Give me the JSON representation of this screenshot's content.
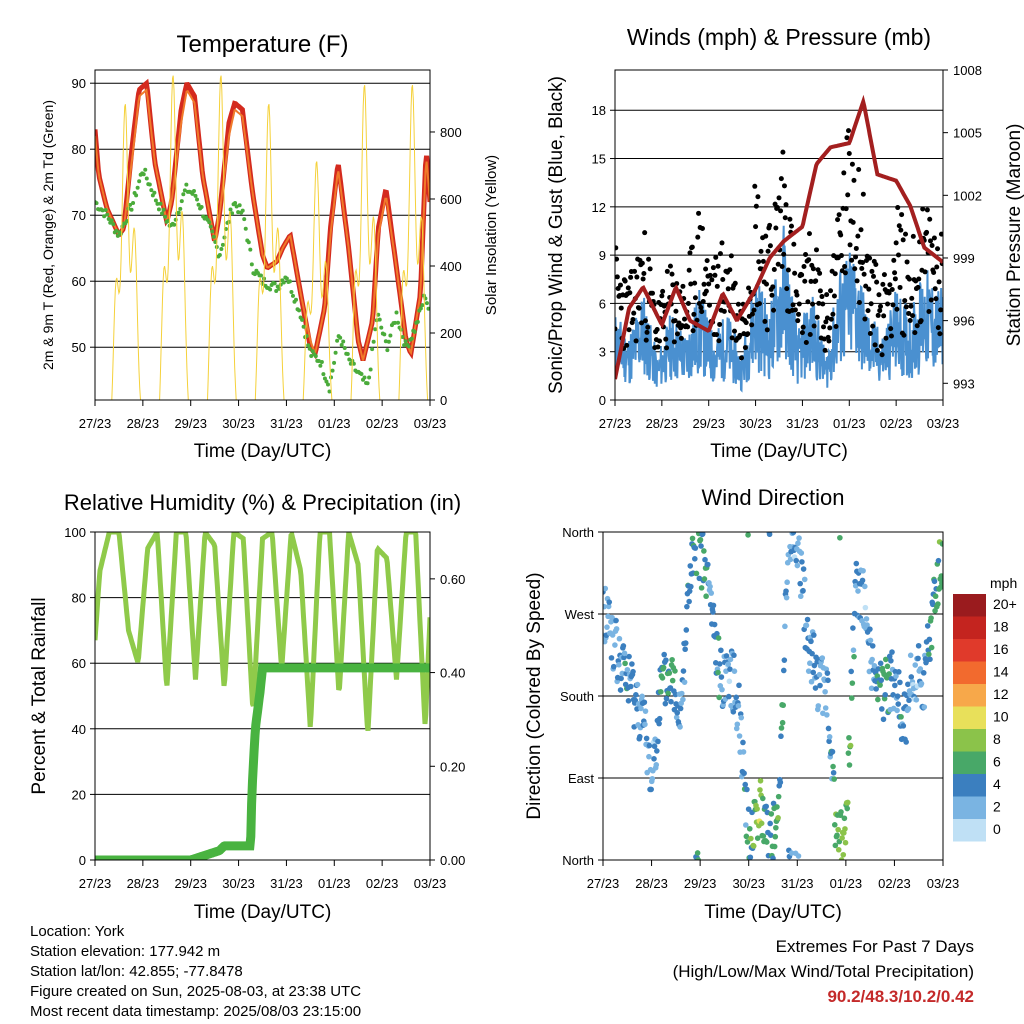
{
  "chart_data": [
    {
      "type": "line",
      "title": "Temperature (F)",
      "xlabel": "Time (Day/UTC)",
      "ylabel": "2m & 9m T (Red, Orange) & 2m Td (Green)",
      "ylabel_right": "Solar Insolation (Yellow)",
      "x_ticks": [
        "27/23",
        "28/23",
        "29/23",
        "30/23",
        "31/23",
        "01/23",
        "02/23",
        "03/23"
      ],
      "ylim": [
        42,
        92
      ],
      "y_ticks": [
        50,
        60,
        70,
        80,
        90
      ],
      "ylim_right": [
        0,
        985
      ],
      "y_ticks_right": [
        0,
        200,
        400,
        600,
        800
      ],
      "grid": true,
      "series": [
        {
          "name": "2m T",
          "color": "#d42a1e",
          "day": [
            0,
            0.08,
            0.25,
            0.5,
            0.6,
            0.8,
            0.92,
            1.08,
            1.25,
            1.5,
            1.6,
            1.8,
            1.92,
            2.08,
            2.25,
            2.5,
            2.6,
            2.8,
            2.92,
            3.08,
            3.3,
            3.5,
            3.6,
            3.8,
            3.92,
            4.08,
            4.3,
            4.5,
            4.6,
            4.8,
            4.92,
            5.08,
            5.3,
            5.5,
            5.6,
            5.8,
            5.92,
            6.08,
            6.3,
            6.5,
            6.6,
            6.8,
            6.92,
            7.0
          ],
          "values": [
            83,
            76,
            71,
            67,
            68,
            82,
            89,
            90,
            78,
            69,
            72,
            86,
            90,
            88,
            76,
            66,
            70,
            84,
            87,
            86,
            73,
            64,
            62,
            63,
            65,
            67,
            58,
            50,
            49,
            56,
            68,
            78,
            65,
            51,
            48,
            54,
            68,
            74,
            62,
            51,
            49,
            58,
            80,
            72
          ]
        },
        {
          "name": "9m T",
          "color": "#f07a2a",
          "day": [
            0,
            0.08,
            0.25,
            0.5,
            0.6,
            0.8,
            0.92,
            1.08,
            1.25,
            1.5,
            1.6,
            1.8,
            1.92,
            2.08,
            2.25,
            2.5,
            2.6,
            2.8,
            2.92,
            3.08,
            3.3,
            3.5,
            3.6,
            3.8,
            3.92,
            4.08,
            4.3,
            4.5,
            4.6,
            4.8,
            4.92,
            5.08,
            5.3,
            5.5,
            5.6,
            5.8,
            5.92,
            6.08,
            6.3,
            6.5,
            6.6,
            6.8,
            6.92,
            7.0
          ],
          "values": [
            82,
            76,
            71,
            67,
            68,
            80,
            88,
            89,
            78,
            69,
            72,
            84,
            89,
            87,
            76,
            66,
            70,
            82,
            86,
            85,
            73,
            64,
            62,
            63,
            65,
            67,
            58,
            51,
            49,
            56,
            67,
            77,
            65,
            51,
            48,
            54,
            67,
            73,
            62,
            51,
            49,
            58,
            79,
            72
          ]
        },
        {
          "name": "2m Td",
          "color": "#4aab3a",
          "day": [
            0,
            0.25,
            0.5,
            0.8,
            1.0,
            1.3,
            1.6,
            1.9,
            2.1,
            2.4,
            2.6,
            2.9,
            3.1,
            3.3,
            3.5,
            3.8,
            4.0,
            4.3,
            4.5,
            4.7,
            4.9,
            5.1,
            5.3,
            5.5,
            5.7,
            5.9,
            6.1,
            6.3,
            6.5,
            6.7,
            6.9,
            7.0
          ],
          "values": [
            72,
            70,
            67,
            72,
            77,
            72,
            68,
            74,
            73,
            68,
            64,
            72,
            70,
            62,
            60,
            59,
            61,
            55,
            49,
            48,
            44,
            52,
            48,
            46,
            44,
            55,
            50,
            55,
            50,
            53,
            58,
            55
          ]
        },
        {
          "name": "Solar Insolation",
          "color": "#f5d13a",
          "axis": "right",
          "day": [
            0.35,
            0.55,
            0.75,
            0.95,
            1.35,
            1.55,
            1.75,
            1.95,
            2.35,
            2.55,
            2.75,
            2.95,
            3.35,
            3.55,
            3.75,
            3.95,
            4.35,
            4.55,
            4.75,
            4.95,
            5.35,
            5.55,
            5.75,
            5.95,
            6.35,
            6.55,
            6.75,
            6.95
          ],
          "values": [
            0,
            700,
            850,
            0,
            0,
            800,
            900,
            0,
            0,
            820,
            880,
            0,
            0,
            750,
            800,
            0,
            0,
            600,
            650,
            0,
            0,
            950,
            700,
            0,
            0,
            800,
            850,
            0
          ]
        }
      ]
    },
    {
      "type": "scatter",
      "title": "Winds (mph) & Pressure (mb)",
      "xlabel": "Time (Day/UTC)",
      "ylabel": "Sonic/Prop Wind & Gust (Blue, Black)",
      "ylabel_right": "Station Pressure (Maroon)",
      "x_ticks": [
        "27/23",
        "28/23",
        "29/23",
        "30/23",
        "31/23",
        "01/23",
        "02/23",
        "03/23"
      ],
      "ylim": [
        0,
        20.5
      ],
      "y_ticks": [
        0,
        3,
        6,
        9,
        12,
        15,
        18
      ],
      "ylim_right": [
        992.2,
        1008.0
      ],
      "y_ticks_right": [
        993,
        996,
        999,
        1002,
        1005,
        1008
      ],
      "grid": true,
      "series": [
        {
          "name": "Wind",
          "color": "#4a90d0",
          "day": [
            0,
            0.3,
            0.6,
            0.9,
            1.2,
            1.5,
            1.8,
            2.1,
            2.4,
            2.7,
            3.0,
            3.3,
            3.6,
            3.9,
            4.2,
            4.5,
            4.8,
            5.1,
            5.4,
            5.7,
            6.0,
            6.3,
            6.6,
            6.9
          ],
          "values": [
            4,
            3,
            5,
            2,
            4,
            3,
            5,
            3,
            4,
            2,
            6,
            4,
            8,
            3,
            5,
            2,
            6,
            7,
            4,
            3,
            5,
            4,
            6,
            5
          ]
        },
        {
          "name": "Gust",
          "color": "#000000",
          "day": [
            0,
            0.3,
            0.6,
            0.9,
            1.2,
            1.5,
            1.8,
            2.1,
            2.4,
            2.7,
            3.0,
            3.3,
            3.6,
            3.9,
            4.2,
            4.5,
            4.8,
            5.1,
            5.4,
            5.7,
            6.0,
            6.3,
            6.6,
            6.9
          ],
          "values": [
            8,
            6,
            9,
            5,
            7,
            6,
            10,
            7,
            9,
            5,
            12,
            9,
            14,
            6,
            9,
            5,
            11,
            16,
            8,
            6,
            10,
            8,
            10,
            9
          ]
        },
        {
          "name": "Pressure",
          "color": "#a31f1f",
          "axis": "right",
          "day": [
            0,
            0.3,
            0.6,
            1.0,
            1.3,
            1.6,
            2.0,
            2.3,
            2.6,
            3.0,
            3.3,
            3.6,
            4.0,
            4.3,
            4.6,
            5.0,
            5.3,
            5.6,
            6.0,
            6.3,
            6.6,
            7.0
          ],
          "values": [
            993.2,
            996.6,
            997.6,
            995.8,
            997.6,
            996.0,
            995.5,
            997.3,
            996.0,
            997.5,
            999.0,
            999.8,
            1000.5,
            1003.5,
            1004.3,
            1004.5,
            1006.5,
            1003.0,
            1002.7,
            1001.5,
            999.5,
            998.8
          ]
        }
      ]
    },
    {
      "type": "line",
      "title": "Relative Humidity (%) & Precipitation (in)",
      "xlabel": "Time (Day/UTC)",
      "ylabel": "Percent & Total Rainfall",
      "x_ticks": [
        "27/23",
        "28/23",
        "29/23",
        "30/23",
        "31/23",
        "01/23",
        "02/23",
        "03/23"
      ],
      "ylim": [
        0,
        100
      ],
      "y_ticks": [
        0,
        20,
        40,
        60,
        80,
        100
      ],
      "ylim_right": [
        0,
        0.7
      ],
      "y_ticks_right": [
        "0.00",
        "0.20",
        "0.40",
        "0.60"
      ],
      "grid": true,
      "series": [
        {
          "name": "RH",
          "color": "#8fca4a",
          "day": [
            0,
            0.1,
            0.3,
            0.5,
            0.7,
            0.9,
            1.1,
            1.3,
            1.5,
            1.7,
            1.9,
            2.1,
            2.3,
            2.5,
            2.7,
            2.9,
            3.1,
            3.3,
            3.5,
            3.7,
            3.9,
            4.1,
            4.3,
            4.5,
            4.7,
            4.9,
            5.1,
            5.3,
            5.5,
            5.7,
            5.9,
            6.1,
            6.3,
            6.5,
            6.7,
            6.9,
            7.0
          ],
          "values": [
            67,
            88,
            100,
            100,
            70,
            60,
            95,
            100,
            52,
            100,
            100,
            55,
            100,
            96,
            52,
            100,
            98,
            45,
            98,
            100,
            58,
            100,
            88,
            40,
            100,
            100,
            50,
            100,
            90,
            38,
            95,
            92,
            55,
            100,
            100,
            40,
            74
          ]
        },
        {
          "name": "Precipitation",
          "color": "#49b340",
          "axis": "right",
          "day": [
            0,
            2.0,
            2.6,
            2.7,
            3.0,
            3.25,
            3.28,
            3.35,
            3.45,
            3.5,
            7.0
          ],
          "values": [
            0.0,
            0.0,
            0.02,
            0.03,
            0.03,
            0.03,
            0.15,
            0.28,
            0.36,
            0.41,
            0.41
          ]
        }
      ]
    },
    {
      "type": "scatter",
      "title": "Wind Direction",
      "xlabel": "Time (Day/UTC)",
      "ylabel": "Direction (Colored By Speed)",
      "x_ticks": [
        "27/23",
        "28/23",
        "29/23",
        "30/23",
        "31/23",
        "01/23",
        "02/23",
        "03/23"
      ],
      "ylim": [
        0,
        360
      ],
      "y_ticks": [
        "North",
        "East",
        "South",
        "West",
        "North"
      ],
      "y_tick_values": [
        0,
        90,
        180,
        270,
        360
      ],
      "grid": true,
      "colorbar": {
        "unit": "mph",
        "labels": [
          "20+",
          "18",
          "16",
          "14",
          "12",
          "10",
          "8",
          "6",
          "4",
          "2",
          "0"
        ],
        "colors": [
          "#9a1b1e",
          "#c4241f",
          "#e03a2b",
          "#f26a2e",
          "#f7a84a",
          "#e8e05a",
          "#8bc34a",
          "#48a868",
          "#3b7fbf",
          "#7ab4e2",
          "#bfe0f5"
        ]
      },
      "series": [
        {
          "name": "Direction",
          "day": [
            0.1,
            0.3,
            0.5,
            0.8,
            1.0,
            1.2,
            1.4,
            1.6,
            1.8,
            2.0,
            2.2,
            2.4,
            2.6,
            2.8,
            3.0,
            3.2,
            3.4,
            3.6,
            3.8,
            4.0,
            4.2,
            4.4,
            4.6,
            4.8,
            5.0,
            5.2,
            5.4,
            5.6,
            5.8,
            6.0,
            6.2,
            6.4,
            6.6,
            6.8,
            6.95
          ],
          "values": [
            270,
            220,
            200,
            160,
            90,
            190,
            200,
            170,
            320,
            340,
            290,
            200,
            210,
            170,
            20,
            60,
            30,
            30,
            340,
            350,
            250,
            200,
            190,
            30,
            20,
            300,
            280,
            180,
            190,
            200,
            150,
            210,
            190,
            280,
            320
          ],
          "speed": [
            2,
            3,
            4,
            3,
            2,
            4,
            5,
            3,
            4,
            6,
            3,
            4,
            2,
            3,
            5,
            8,
            4,
            6,
            3,
            2,
            4,
            3,
            2,
            6,
            8,
            3,
            2,
            4,
            6,
            3,
            4,
            2,
            3,
            5,
            6
          ]
        }
      ]
    }
  ],
  "info": {
    "location": "Location: York",
    "elevation": "Station elevation: 177.942 m",
    "latlon": "Station lat/lon: 42.855; -77.8478",
    "created": "Figure created on Sun, 2025-08-03, at 23:38 UTC",
    "recent": "Most recent data timestamp: 2025/08/03 23:15:00"
  },
  "extremes": {
    "line1": "Extremes For Past 7 Days",
    "line2": "(High/Low/Max Wind/Total Precipitation)",
    "values": "90.2/48.3/10.2/0.42"
  }
}
